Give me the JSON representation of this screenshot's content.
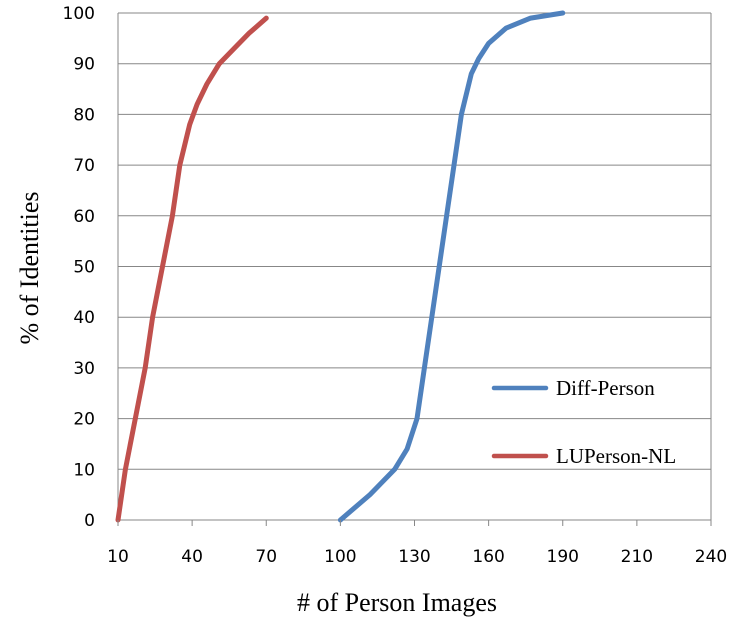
{
  "chart_data": {
    "type": "line",
    "title": "",
    "xlabel": "# of Person Images",
    "ylabel": "% of Identities",
    "xlim": [
      10,
      240
    ],
    "ylim": [
      0,
      100
    ],
    "x_ticks": [
      "10",
      "40",
      "70",
      "100",
      "130",
      "160",
      "190",
      "210",
      "240"
    ],
    "y_ticks": [
      "0",
      "10",
      "20",
      "30",
      "40",
      "50",
      "60",
      "70",
      "80",
      "90",
      "100"
    ],
    "grid": true,
    "legend_position": "lower-right",
    "series": [
      {
        "name": "Diff-Person",
        "color": "#4F81BD",
        "points": [
          [
            100,
            0
          ],
          [
            112,
            5
          ],
          [
            122,
            10
          ],
          [
            127,
            14
          ],
          [
            131,
            20
          ],
          [
            134,
            30
          ],
          [
            137,
            40
          ],
          [
            140,
            50
          ],
          [
            143,
            60
          ],
          [
            146,
            70
          ],
          [
            149,
            80
          ],
          [
            153,
            88
          ],
          [
            156,
            91
          ],
          [
            160,
            94
          ],
          [
            167,
            97
          ],
          [
            177,
            99
          ],
          [
            190,
            100
          ]
        ]
      },
      {
        "name": "LUPerson-NL",
        "color": "#C0504D",
        "points": [
          [
            10,
            0
          ],
          [
            13,
            10
          ],
          [
            17,
            20
          ],
          [
            21,
            30
          ],
          [
            24,
            40
          ],
          [
            28,
            50
          ],
          [
            32,
            60
          ],
          [
            35,
            70
          ],
          [
            39,
            78
          ],
          [
            42,
            82
          ],
          [
            46,
            86
          ],
          [
            51,
            90
          ],
          [
            57,
            93
          ],
          [
            63,
            96
          ],
          [
            70,
            99
          ]
        ]
      }
    ]
  }
}
